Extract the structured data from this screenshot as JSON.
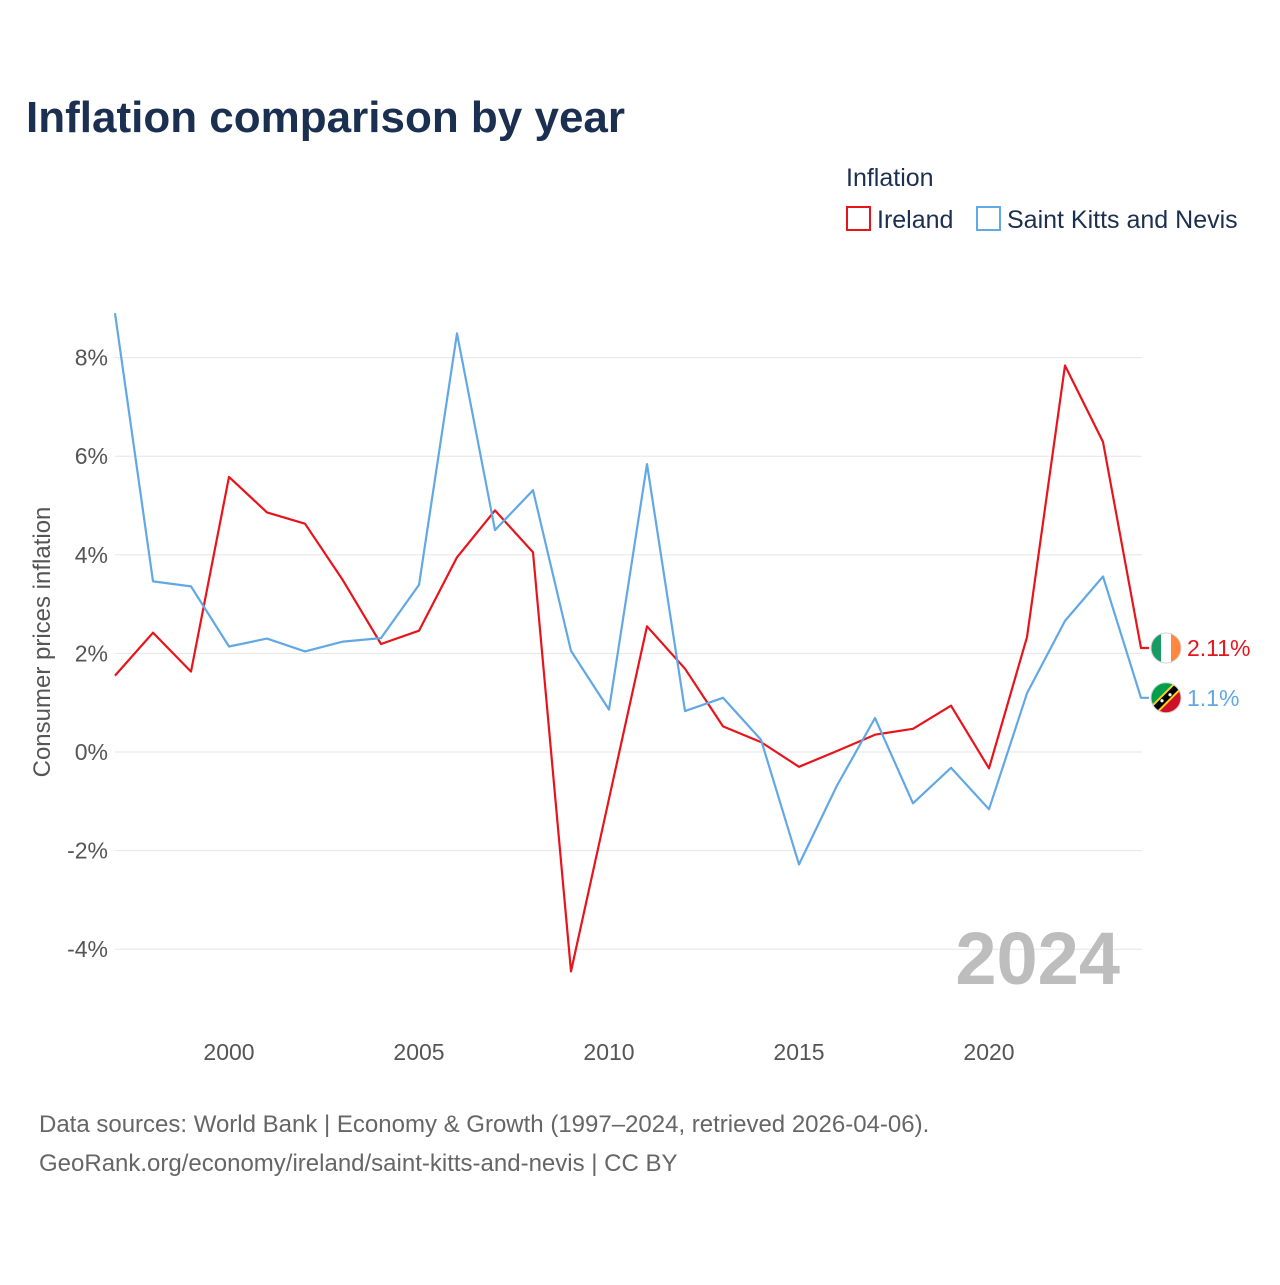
{
  "title": "Inflation comparison by year",
  "legend": {
    "title": "Inflation",
    "items": [
      {
        "label": "Ireland",
        "color": "#e8141c"
      },
      {
        "label": "Saint Kitts and Nevis",
        "color": "#62a8e5"
      }
    ]
  },
  "watermark_year": "2024",
  "source": {
    "line1": "Data sources: World Bank | Economy & Growth (1997–2024, retrieved 2026-04-06).",
    "line2": "GeoRank.org/economy/ireland/saint-kitts-and-nevis | CC BY"
  },
  "chart_data": {
    "type": "line",
    "title": "Inflation comparison by year",
    "xlabel": "",
    "ylabel": "Consumer prices inflation",
    "xlim": [
      1997,
      2024
    ],
    "ylim": [
      -5,
      9
    ],
    "x_ticks": [
      2000,
      2005,
      2010,
      2015,
      2020
    ],
    "y_ticks": [
      -4,
      -2,
      0,
      2,
      4,
      6,
      8
    ],
    "y_tick_labels": [
      "-4%",
      "-2%",
      "0%",
      "2%",
      "4%",
      "6%",
      "8%"
    ],
    "grid": true,
    "legend_position": "top-right",
    "x": [
      1997,
      1998,
      1999,
      2000,
      2001,
      2002,
      2003,
      2004,
      2005,
      2006,
      2007,
      2008,
      2009,
      2010,
      2011,
      2012,
      2013,
      2014,
      2015,
      2016,
      2017,
      2018,
      2019,
      2020,
      2021,
      2022,
      2023,
      2024
    ],
    "series": [
      {
        "name": "Ireland",
        "color": "#e8141c",
        "end_label": "2.11%",
        "flag": "ireland-flag-icon",
        "values": [
          1.55,
          2.42,
          1.63,
          5.58,
          4.86,
          4.63,
          3.48,
          2.19,
          2.46,
          3.95,
          4.9,
          4.05,
          -4.45,
          -0.95,
          2.55,
          1.69,
          0.52,
          0.2,
          -0.3,
          0.02,
          0.35,
          0.47,
          0.94,
          -0.33,
          2.33,
          7.84,
          6.29,
          2.11
        ]
      },
      {
        "name": "Saint Kitts and Nevis",
        "color": "#62a8e5",
        "end_label": "1.1%",
        "flag": "saint-kitts-and-nevis-flag-icon",
        "values": [
          8.9,
          3.46,
          3.36,
          2.14,
          2.3,
          2.04,
          2.24,
          2.31,
          3.39,
          8.49,
          4.5,
          5.31,
          2.05,
          0.86,
          5.84,
          0.83,
          1.1,
          0.25,
          -2.28,
          -0.68,
          0.69,
          -1.04,
          -0.32,
          -1.16,
          1.19,
          2.66,
          3.56,
          1.1
        ]
      }
    ]
  }
}
